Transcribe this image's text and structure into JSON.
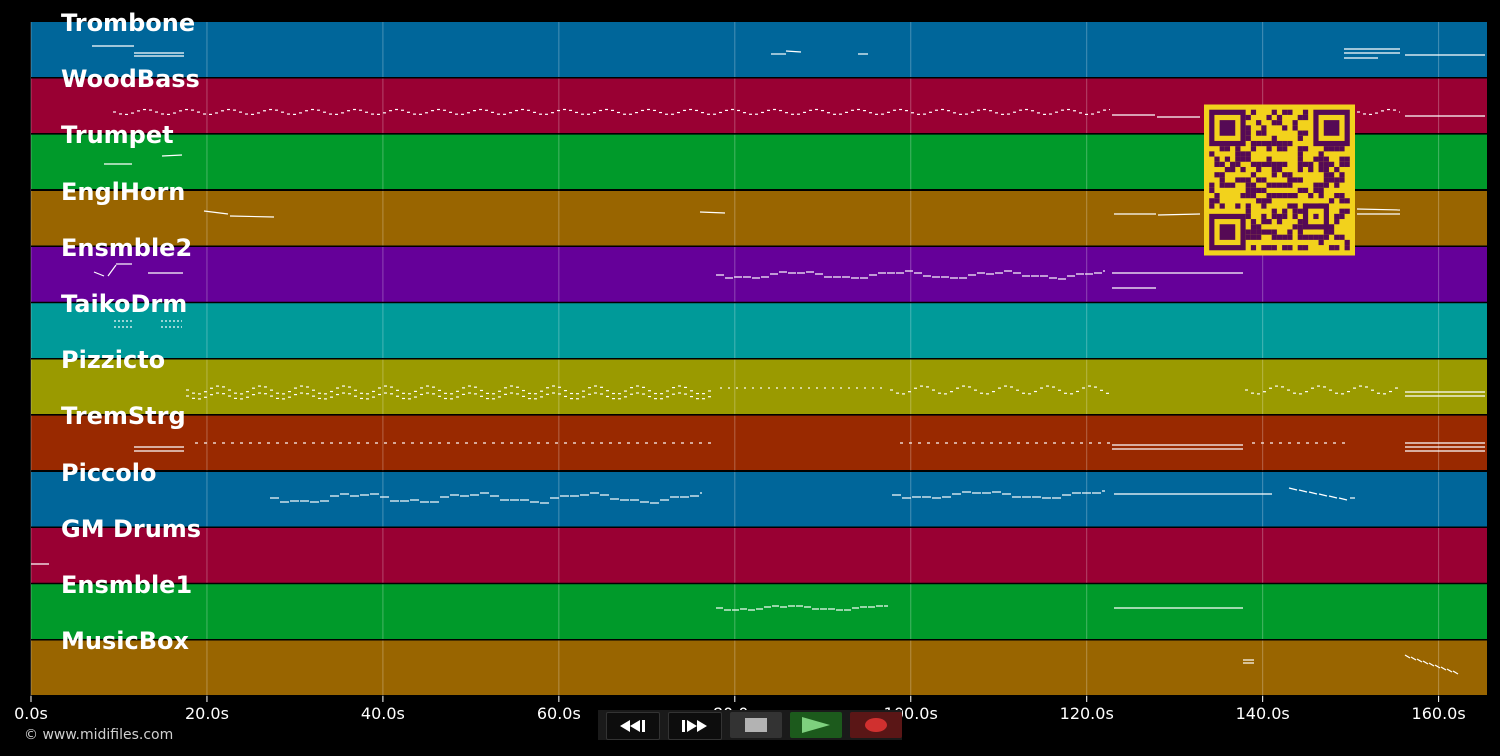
{
  "tracks": [
    {
      "name": "Trombone",
      "color": "#00669a"
    },
    {
      "name": "WoodBass",
      "color": "#990033"
    },
    {
      "name": "Trumpet",
      "color": "#009a2a"
    },
    {
      "name": "EnglHorn",
      "color": "#996500"
    },
    {
      "name": "Ensmble2",
      "color": "#650099"
    },
    {
      "name": "TaikoDrm",
      "color": "#009a99"
    },
    {
      "name": "Pizzicto",
      "color": "#9a9a00"
    },
    {
      "name": "TremStrg",
      "color": "#992900"
    },
    {
      "name": "Piccolo",
      "color": "#00669a"
    },
    {
      "name": "GM Drums",
      "color": "#990033"
    },
    {
      "name": "Ensmble1",
      "color": "#009a2a"
    },
    {
      "name": "MusicBox",
      "color": "#996500"
    }
  ],
  "time_axis": {
    "ticks": [
      "0.0s",
      "20.0s",
      "40.0s",
      "60.0s",
      "80.0s",
      "100.0s",
      "120.0s",
      "140.0s",
      "160.0s"
    ],
    "range_seconds": [
      0,
      165.5
    ]
  },
  "controls": {
    "rewind_icon": "rewind-icon",
    "ffwd_icon": "fast-forward-icon",
    "stop_icon": "stop-icon",
    "play_icon": "play-icon",
    "record_icon": "record-icon"
  },
  "copyright": "© www.midifiles.com",
  "qr_code": {
    "foreground": "#550a55",
    "background": "#f2d21c"
  }
}
